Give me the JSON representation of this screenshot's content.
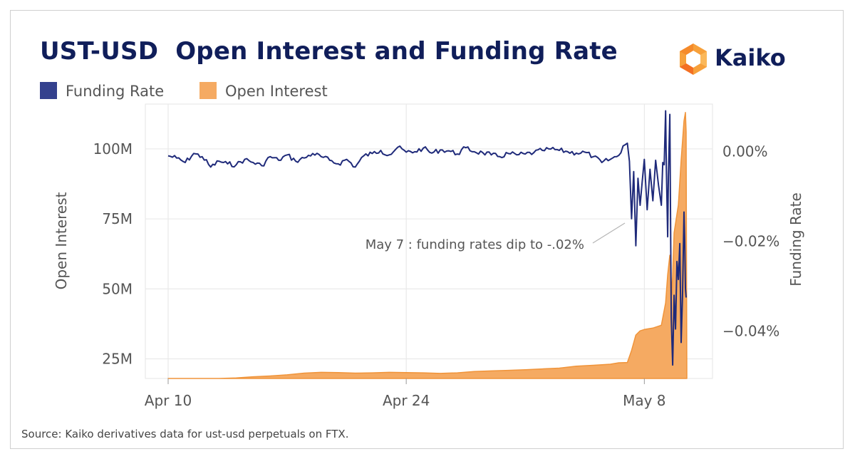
{
  "header": {
    "title": "UST-USD  Open Interest and Funding Rate",
    "logo_text": "Kaiko"
  },
  "legend": [
    {
      "label": "Funding Rate",
      "color": "#34418e"
    },
    {
      "label": "Open Interest",
      "color": "#f5aa62"
    }
  ],
  "source": "Source: Kaiko derivatives data for ust-usd perpetuals on FTX.",
  "colors": {
    "funding_line": "#1f2a7a",
    "open_interest_fill": "#f5aa62",
    "open_interest_stroke": "#f0943a",
    "grid": "#e6e6e6",
    "logo_orange": "#f7a03a"
  },
  "chart_data": {
    "type": "line",
    "xlabel": "",
    "x_ticks": [
      "Apr 10",
      "Apr 24",
      "May 8"
    ],
    "x_range": [
      "2022-04-10",
      "2022-05-10"
    ],
    "y_left": {
      "label": "Open Interest",
      "ticks": [
        "25M",
        "50M",
        "75M",
        "100M"
      ],
      "range": [
        18000000,
        116000000
      ]
    },
    "y_right": {
      "label": "Funding Rate",
      "ticks": [
        "0.00%",
        "−0.02%",
        "−0.04%"
      ],
      "tick_values": [
        0.0,
        -0.02,
        -0.04
      ],
      "range": [
        -0.0505,
        0.0105
      ]
    },
    "annotation": {
      "text": "May 7 : funding rates dip to -.02%",
      "date": "2022-05-07"
    },
    "grid": true,
    "legend_position": "top-left",
    "series": [
      {
        "name": "Open Interest",
        "axis": "left",
        "type": "area",
        "points": [
          [
            "2022-04-10",
            15500000
          ],
          [
            "2022-04-10T06:00",
            17200000
          ],
          [
            "2022-04-11",
            17500000
          ],
          [
            "2022-04-12",
            17600000
          ],
          [
            "2022-04-13",
            17800000
          ],
          [
            "2022-04-14",
            18200000
          ],
          [
            "2022-04-15",
            18600000
          ],
          [
            "2022-04-16",
            18900000
          ],
          [
            "2022-04-17",
            19300000
          ],
          [
            "2022-04-18",
            19900000
          ],
          [
            "2022-04-19",
            20200000
          ],
          [
            "2022-04-20",
            20100000
          ],
          [
            "2022-04-21",
            19900000
          ],
          [
            "2022-04-22",
            20000000
          ],
          [
            "2022-04-23",
            20200000
          ],
          [
            "2022-04-24",
            20100000
          ],
          [
            "2022-04-25",
            20000000
          ],
          [
            "2022-04-26",
            19800000
          ],
          [
            "2022-04-27",
            20000000
          ],
          [
            "2022-04-28",
            20500000
          ],
          [
            "2022-04-29",
            20700000
          ],
          [
            "2022-04-30",
            20900000
          ],
          [
            "2022-05-01",
            21100000
          ],
          [
            "2022-05-02",
            21400000
          ],
          [
            "2022-05-03",
            21700000
          ],
          [
            "2022-05-04",
            22400000
          ],
          [
            "2022-05-05",
            22700000
          ],
          [
            "2022-05-06",
            23100000
          ],
          [
            "2022-05-06T12:00",
            23600000
          ],
          [
            "2022-05-07",
            23700000
          ],
          [
            "2022-05-07T06:00",
            28000000
          ],
          [
            "2022-05-07T12:00",
            33500000
          ],
          [
            "2022-05-07T18:00",
            35000000
          ],
          [
            "2022-05-08",
            35500000
          ],
          [
            "2022-05-08T12:00",
            36000000
          ],
          [
            "2022-05-09",
            37000000
          ],
          [
            "2022-05-09T06:00",
            45000000
          ],
          [
            "2022-05-09T09:00",
            55000000
          ],
          [
            "2022-05-09T12:00",
            62000000
          ],
          [
            "2022-05-09T15:00",
            48000000
          ],
          [
            "2022-05-09T18:00",
            70000000
          ],
          [
            "2022-05-10",
            80000000
          ],
          [
            "2022-05-10T04:00",
            96000000
          ],
          [
            "2022-05-10T08:00",
            110000000
          ],
          [
            "2022-05-10T10:00",
            113000000
          ],
          [
            "2022-05-10T11:00",
            106000000
          ],
          [
            "2022-05-10T12:00",
            18000000
          ]
        ]
      },
      {
        "name": "Funding Rate",
        "axis": "right",
        "type": "line",
        "points": [
          [
            "2022-04-10",
            -0.001
          ],
          [
            "2022-04-10T12:00",
            -0.0015
          ],
          [
            "2022-04-11",
            -0.0025
          ],
          [
            "2022-04-11T12:00",
            -0.0005
          ],
          [
            "2022-04-12",
            -0.0012
          ],
          [
            "2022-04-12T12:00",
            -0.0035
          ],
          [
            "2022-04-13",
            -0.0022
          ],
          [
            "2022-04-13T12:00",
            -0.0028
          ],
          [
            "2022-04-14",
            -0.003
          ],
          [
            "2022-04-14T12:00",
            -0.0018
          ],
          [
            "2022-04-15",
            -0.0025
          ],
          [
            "2022-04-15T12:00",
            -0.0032
          ],
          [
            "2022-04-16",
            -0.0012
          ],
          [
            "2022-04-16T12:00",
            -0.002
          ],
          [
            "2022-04-17",
            -0.0008
          ],
          [
            "2022-04-17T12:00",
            -0.0022
          ],
          [
            "2022-04-18",
            -0.0015
          ],
          [
            "2022-04-18T12:00",
            -0.0005
          ],
          [
            "2022-04-19",
            -0.0012
          ],
          [
            "2022-04-19T12:00",
            -0.002
          ],
          [
            "2022-04-20",
            -0.0028
          ],
          [
            "2022-04-20T12:00",
            -0.0018
          ],
          [
            "2022-04-21",
            -0.0035
          ],
          [
            "2022-04-21T12:00",
            -0.001
          ],
          [
            "2022-04-22",
            -0.0005
          ],
          [
            "2022-04-22T12:00",
            0.0002
          ],
          [
            "2022-04-23",
            -0.0008
          ],
          [
            "2022-04-23T12:00",
            0.0009
          ],
          [
            "2022-04-24",
            -0.0002
          ],
          [
            "2022-04-24T12:00",
            -0.0001
          ],
          [
            "2022-04-25",
            0.0007
          ],
          [
            "2022-04-25T12:00",
            -0.0004
          ],
          [
            "2022-04-26",
            0.0003
          ],
          [
            "2022-04-26T12:00",
            0.0001
          ],
          [
            "2022-04-27",
            -0.0006
          ],
          [
            "2022-04-27T12:00",
            0.0008
          ],
          [
            "2022-04-28",
            -0.0001
          ],
          [
            "2022-04-28T12:00",
            -0.0003
          ],
          [
            "2022-04-29",
            -0.0008
          ],
          [
            "2022-04-29T12:00",
            -0.0012
          ],
          [
            "2022-04-30",
            -0.0005
          ],
          [
            "2022-04-30T12:00",
            -0.0008
          ],
          [
            "2022-05-01",
            -0.0006
          ],
          [
            "2022-05-01T12:00",
            -0.0003
          ],
          [
            "2022-05-02",
            0.0002
          ],
          [
            "2022-05-02T12:00",
            0.0005
          ],
          [
            "2022-05-03",
            0.0002
          ],
          [
            "2022-05-03T12:00",
            -0.0001
          ],
          [
            "2022-05-04",
            -0.0004
          ],
          [
            "2022-05-04T12:00",
            -0.0002
          ],
          [
            "2022-05-05",
            -0.0012
          ],
          [
            "2022-05-05T12:00",
            -0.0025
          ],
          [
            "2022-05-06",
            -0.0018
          ],
          [
            "2022-05-06T12:00",
            -0.0009
          ],
          [
            "2022-05-06T18:00",
            0.0012
          ],
          [
            "2022-05-07",
            0.0018
          ],
          [
            "2022-05-07T03:00",
            -0.0022
          ],
          [
            "2022-05-07T06:00",
            -0.015
          ],
          [
            "2022-05-07T09:00",
            -0.0045
          ],
          [
            "2022-05-07T12:00",
            -0.021
          ],
          [
            "2022-05-07T15:00",
            -0.006
          ],
          [
            "2022-05-07T18:00",
            -0.012
          ],
          [
            "2022-05-08",
            -0.0018
          ],
          [
            "2022-05-08T04:00",
            -0.013
          ],
          [
            "2022-05-08T08:00",
            -0.004
          ],
          [
            "2022-05-08T12:00",
            -0.011
          ],
          [
            "2022-05-08T16:00",
            -0.002
          ],
          [
            "2022-05-08T20:00",
            -0.0075
          ],
          [
            "2022-05-09",
            -0.012
          ],
          [
            "2022-05-09T02:00",
            -0.0025
          ],
          [
            "2022-05-09T04:00",
            -0.003
          ],
          [
            "2022-05-09T06:00",
            0.009
          ],
          [
            "2022-05-09T07:00",
            -0.0035
          ],
          [
            "2022-05-09T09:00",
            -0.019
          ],
          [
            "2022-05-09T10:00",
            -0.0055
          ],
          [
            "2022-05-09T12:00",
            0.0082
          ],
          [
            "2022-05-09T14:00",
            -0.037
          ],
          [
            "2022-05-09T16:00",
            -0.0475
          ],
          [
            "2022-05-09T18:00",
            -0.032
          ],
          [
            "2022-05-09T20:00",
            -0.0395
          ],
          [
            "2022-05-09T22:00",
            -0.0245
          ],
          [
            "2022-05-10",
            -0.0285
          ],
          [
            "2022-05-10T02:00",
            -0.0205
          ],
          [
            "2022-05-10T04:00",
            -0.0425
          ],
          [
            "2022-05-10T06:00",
            -0.0315
          ],
          [
            "2022-05-10T08:00",
            -0.0135
          ],
          [
            "2022-05-10T09:00",
            -0.02
          ],
          [
            "2022-05-10T10:00",
            -0.0305
          ],
          [
            "2022-05-10T11:00",
            -0.0325
          ]
        ]
      }
    ]
  }
}
